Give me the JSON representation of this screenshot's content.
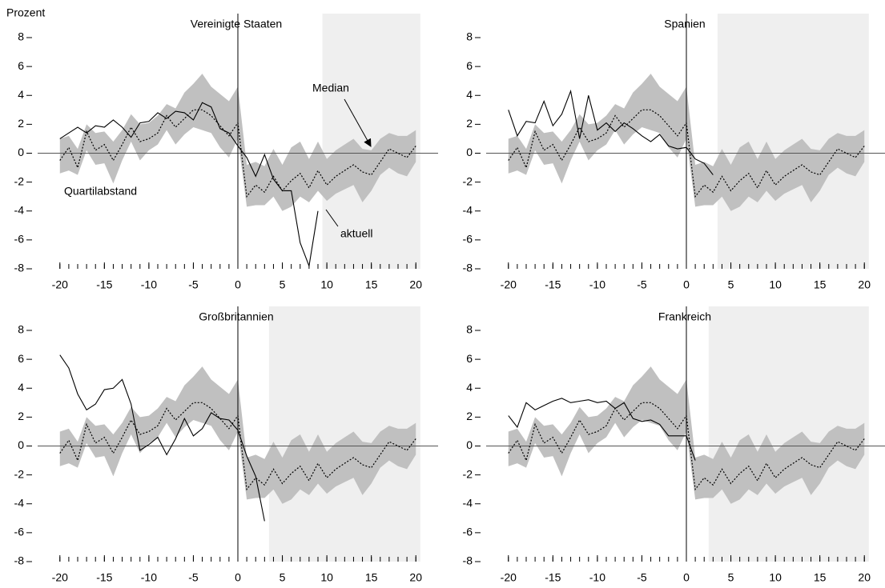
{
  "chart_data": [
    {
      "type": "line",
      "title": "Vereinigte Staaten",
      "ylabel": "Prozent",
      "x": [
        -20,
        -19,
        -18,
        -17,
        -16,
        -15,
        -14,
        -13,
        -12,
        -11,
        -10,
        -9,
        -8,
        -7,
        -6,
        -5,
        -4,
        -3,
        -2,
        -1,
        0,
        1,
        2,
        3,
        4,
        5,
        6,
        7,
        8,
        9,
        10,
        11,
        12,
        13,
        14,
        15,
        16,
        17,
        18,
        19,
        20
      ],
      "xlim": [
        -22.5,
        22.5
      ],
      "xticks": [
        -20,
        -15,
        -10,
        -5,
        0,
        5,
        10,
        15,
        20
      ],
      "ylim": [
        -8,
        8
      ],
      "yticks": [
        -8,
        -6,
        -4,
        -2,
        0,
        2,
        4,
        6,
        8
      ],
      "forecast_start": 9.5,
      "forecast_end": 20.5,
      "series": [
        {
          "name": "Quartilabstand",
          "color": "#c0c0c0",
          "high": [
            1.0,
            1.2,
            0.3,
            2.0,
            1.4,
            1.5,
            0.8,
            1.6,
            2.7,
            2.0,
            2.1,
            2.6,
            3.4,
            3.1,
            4.2,
            4.8,
            5.5,
            4.6,
            4.1,
            3.6,
            4.6,
            -0.8,
            -0.6,
            -0.9,
            0.3,
            -0.8,
            0.4,
            0.8,
            -0.4,
            0.8,
            -0.4,
            0.2,
            0.6,
            1.0,
            0.3,
            0.2,
            1.0,
            1.4,
            1.2,
            1.2,
            1.6
          ],
          "low": [
            -1.4,
            -1.2,
            -1.5,
            0.2,
            -0.8,
            -0.7,
            -2.1,
            -0.5,
            0.8,
            -0.5,
            0.2,
            0.6,
            1.6,
            0.6,
            1.3,
            1.8,
            1.6,
            1.4,
            0.4,
            -0.3,
            1.0,
            -3.7,
            -3.6,
            -3.6,
            -3.0,
            -4.0,
            -3.7,
            -3.0,
            -3.4,
            -2.6,
            -3.3,
            -2.8,
            -2.5,
            -2.2,
            -3.4,
            -2.6,
            -1.5,
            -1.0,
            -1.4,
            -1.6,
            -0.6
          ]
        },
        {
          "name": "Median",
          "color": "#000000",
          "values": [
            -0.5,
            0.4,
            -1.0,
            1.5,
            0.2,
            0.6,
            -0.5,
            0.6,
            1.8,
            0.8,
            1.0,
            1.4,
            2.6,
            1.8,
            2.4,
            3.0,
            3.0,
            2.6,
            1.9,
            1.2,
            2.1,
            -3.0,
            -2.2,
            -2.7,
            -1.6,
            -2.6,
            -1.9,
            -1.4,
            -2.4,
            -1.2,
            -2.2,
            -1.6,
            -1.2,
            -0.8,
            -1.3,
            -1.5,
            -0.6,
            0.3,
            0.0,
            -0.3,
            0.5
          ]
        },
        {
          "name": "aktuell",
          "color": "#000000",
          "values": [
            1.0,
            1.4,
            1.8,
            1.4,
            1.9,
            1.8,
            2.3,
            1.8,
            1.1,
            2.1,
            2.2,
            2.8,
            2.4,
            2.9,
            2.8,
            2.3,
            3.5,
            3.2,
            1.7,
            1.4,
            0.5,
            -0.3,
            -1.6,
            -0.1,
            -1.8,
            -2.6,
            -2.6,
            -6.2,
            -7.8,
            -4.0,
            null,
            null,
            null,
            null,
            null,
            null,
            null,
            null,
            null,
            null,
            null
          ]
        }
      ]
    },
    {
      "type": "line",
      "title": "Spanien",
      "x": [
        -20,
        -19,
        -18,
        -17,
        -16,
        -15,
        -14,
        -13,
        -12,
        -11,
        -10,
        -9,
        -8,
        -7,
        -6,
        -5,
        -4,
        -3,
        -2,
        -1,
        0,
        1,
        2,
        3,
        4,
        5,
        6,
        7,
        8,
        9,
        10,
        11,
        12,
        13,
        14,
        15,
        16,
        17,
        18,
        19,
        20
      ],
      "xlim": [
        -22.5,
        22.5
      ],
      "xticks": [
        -20,
        -15,
        -10,
        -5,
        0,
        5,
        10,
        15,
        20
      ],
      "ylim": [
        -8,
        8
      ],
      "yticks": [
        -8,
        -6,
        -4,
        -2,
        0,
        2,
        4,
        6,
        8
      ],
      "forecast_start": 3.5,
      "forecast_end": 20.5,
      "series": [
        {
          "color": "#c0c0c0",
          "high": [
            1.0,
            1.2,
            0.3,
            2.0,
            1.4,
            1.5,
            0.8,
            1.6,
            2.7,
            2.0,
            2.1,
            2.6,
            3.4,
            3.1,
            4.2,
            4.8,
            5.5,
            4.6,
            4.1,
            3.6,
            4.6,
            -0.8,
            -0.6,
            -0.9,
            0.3,
            -0.8,
            0.4,
            0.8,
            -0.4,
            0.8,
            -0.4,
            0.2,
            0.6,
            1.0,
            0.3,
            0.2,
            1.0,
            1.4,
            1.2,
            1.2,
            1.6
          ],
          "low": [
            -1.4,
            -1.2,
            -1.5,
            0.2,
            -0.8,
            -0.7,
            -2.1,
            -0.5,
            0.8,
            -0.5,
            0.2,
            0.6,
            1.6,
            0.6,
            1.3,
            1.8,
            1.6,
            1.4,
            0.4,
            -0.3,
            1.0,
            -3.7,
            -3.6,
            -3.6,
            -3.0,
            -4.0,
            -3.7,
            -3.0,
            -3.4,
            -2.6,
            -3.3,
            -2.8,
            -2.5,
            -2.2,
            -3.4,
            -2.6,
            -1.5,
            -1.0,
            -1.4,
            -1.6,
            -0.6
          ]
        },
        {
          "color": "#000000",
          "values": [
            -0.5,
            0.4,
            -1.0,
            1.5,
            0.2,
            0.6,
            -0.5,
            0.6,
            1.8,
            0.8,
            1.0,
            1.4,
            2.6,
            1.8,
            2.4,
            3.0,
            3.0,
            2.6,
            1.9,
            1.2,
            2.1,
            -3.0,
            -2.2,
            -2.7,
            -1.6,
            -2.6,
            -1.9,
            -1.4,
            -2.4,
            -1.2,
            -2.2,
            -1.6,
            -1.2,
            -0.8,
            -1.3,
            -1.5,
            -0.6,
            0.3,
            0.0,
            -0.3,
            0.5
          ]
        },
        {
          "color": "#000000",
          "values": [
            3.0,
            1.2,
            2.2,
            2.1,
            3.6,
            1.9,
            2.7,
            4.3,
            1.0,
            4.0,
            1.6,
            2.1,
            1.5,
            2.1,
            1.7,
            1.2,
            0.8,
            1.3,
            0.5,
            0.3,
            0.4,
            -0.4,
            -0.7,
            -1.5,
            null,
            null,
            null,
            null,
            null,
            null,
            null,
            null,
            null,
            null,
            null,
            null,
            null,
            null,
            null,
            null,
            null
          ]
        }
      ]
    },
    {
      "type": "line",
      "title": "Großbritannien",
      "x": [
        -20,
        -19,
        -18,
        -17,
        -16,
        -15,
        -14,
        -13,
        -12,
        -11,
        -10,
        -9,
        -8,
        -7,
        -6,
        -5,
        -4,
        -3,
        -2,
        -1,
        0,
        1,
        2,
        3,
        4,
        5,
        6,
        7,
        8,
        9,
        10,
        11,
        12,
        13,
        14,
        15,
        16,
        17,
        18,
        19,
        20
      ],
      "xlim": [
        -22.5,
        22.5
      ],
      "xticks": [
        -20,
        -15,
        -10,
        -5,
        0,
        5,
        10,
        15,
        20
      ],
      "ylim": [
        -8,
        8
      ],
      "yticks": [
        -8,
        -6,
        -4,
        -2,
        0,
        2,
        4,
        6,
        8
      ],
      "forecast_start": 3.5,
      "forecast_end": 20.5,
      "series": [
        {
          "color": "#c0c0c0",
          "high": [
            1.0,
            1.2,
            0.3,
            2.0,
            1.4,
            1.5,
            0.8,
            1.6,
            2.7,
            2.0,
            2.1,
            2.6,
            3.4,
            3.1,
            4.2,
            4.8,
            5.5,
            4.6,
            4.1,
            3.6,
            4.6,
            -0.8,
            -0.6,
            -0.9,
            0.3,
            -0.8,
            0.4,
            0.8,
            -0.4,
            0.8,
            -0.4,
            0.2,
            0.6,
            1.0,
            0.3,
            0.2,
            1.0,
            1.4,
            1.2,
            1.2,
            1.6
          ],
          "low": [
            -1.4,
            -1.2,
            -1.5,
            0.2,
            -0.8,
            -0.7,
            -2.1,
            -0.5,
            0.8,
            -0.5,
            0.2,
            0.6,
            1.6,
            0.6,
            1.3,
            1.8,
            1.6,
            1.4,
            0.4,
            -0.3,
            1.0,
            -3.7,
            -3.6,
            -3.6,
            -3.0,
            -4.0,
            -3.7,
            -3.0,
            -3.4,
            -2.6,
            -3.3,
            -2.8,
            -2.5,
            -2.2,
            -3.4,
            -2.6,
            -1.5,
            -1.0,
            -1.4,
            -1.6,
            -0.6
          ]
        },
        {
          "color": "#000000",
          "values": [
            -0.5,
            0.4,
            -1.0,
            1.5,
            0.2,
            0.6,
            -0.5,
            0.6,
            1.8,
            0.8,
            1.0,
            1.4,
            2.6,
            1.8,
            2.4,
            3.0,
            3.0,
            2.6,
            1.9,
            1.2,
            2.1,
            -3.0,
            -2.2,
            -2.7,
            -1.6,
            -2.6,
            -1.9,
            -1.4,
            -2.4,
            -1.2,
            -2.2,
            -1.6,
            -1.2,
            -0.8,
            -1.3,
            -1.5,
            -0.6,
            0.3,
            0.0,
            -0.3,
            0.5
          ]
        },
        {
          "color": "#000000",
          "values": [
            6.3,
            5.4,
            3.6,
            2.5,
            2.9,
            3.9,
            4.0,
            4.6,
            2.9,
            -0.3,
            0.1,
            0.6,
            -0.6,
            0.5,
            1.9,
            0.7,
            1.2,
            2.3,
            1.9,
            1.8,
            1.1,
            -0.7,
            -2.1,
            -5.2,
            null,
            null,
            null,
            null,
            null,
            null,
            null,
            null,
            null,
            null,
            null,
            null,
            null,
            null,
            null,
            null,
            null
          ]
        }
      ]
    },
    {
      "type": "line",
      "title": "Frankreich",
      "x": [
        -20,
        -19,
        -18,
        -17,
        -16,
        -15,
        -14,
        -13,
        -12,
        -11,
        -10,
        -9,
        -8,
        -7,
        -6,
        -5,
        -4,
        -3,
        -2,
        -1,
        0,
        1,
        2,
        3,
        4,
        5,
        6,
        7,
        8,
        9,
        10,
        11,
        12,
        13,
        14,
        15,
        16,
        17,
        18,
        19,
        20
      ],
      "xlim": [
        -22.5,
        22.5
      ],
      "xticks": [
        -20,
        -15,
        -10,
        -5,
        0,
        5,
        10,
        15,
        20
      ],
      "ylim": [
        -8,
        8
      ],
      "yticks": [
        -8,
        -6,
        -4,
        -2,
        0,
        2,
        4,
        6,
        8
      ],
      "forecast_start": 2.5,
      "forecast_end": 20.5,
      "series": [
        {
          "color": "#c0c0c0",
          "high": [
            1.0,
            1.2,
            0.3,
            2.0,
            1.4,
            1.5,
            0.8,
            1.6,
            2.7,
            2.0,
            2.1,
            2.6,
            3.4,
            3.1,
            4.2,
            4.8,
            5.5,
            4.6,
            4.1,
            3.6,
            4.6,
            -0.8,
            -0.6,
            -0.9,
            0.3,
            -0.8,
            0.4,
            0.8,
            -0.4,
            0.8,
            -0.4,
            0.2,
            0.6,
            1.0,
            0.3,
            0.2,
            1.0,
            1.4,
            1.2,
            1.2,
            1.6
          ],
          "low": [
            -1.4,
            -1.2,
            -1.5,
            0.2,
            -0.8,
            -0.7,
            -2.1,
            -0.5,
            0.8,
            -0.5,
            0.2,
            0.6,
            1.6,
            0.6,
            1.3,
            1.8,
            1.6,
            1.4,
            0.4,
            -0.3,
            1.0,
            -3.7,
            -3.6,
            -3.6,
            -3.0,
            -4.0,
            -3.7,
            -3.0,
            -3.4,
            -2.6,
            -3.3,
            -2.8,
            -2.5,
            -2.2,
            -3.4,
            -2.6,
            -1.5,
            -1.0,
            -1.4,
            -1.6,
            -0.6
          ]
        },
        {
          "color": "#000000",
          "values": [
            -0.5,
            0.4,
            -1.0,
            1.5,
            0.2,
            0.6,
            -0.5,
            0.6,
            1.8,
            0.8,
            1.0,
            1.4,
            2.6,
            1.8,
            2.4,
            3.0,
            3.0,
            2.6,
            1.9,
            1.2,
            2.1,
            -3.0,
            -2.2,
            -2.7,
            -1.6,
            -2.6,
            -1.9,
            -1.4,
            -2.4,
            -1.2,
            -2.2,
            -1.6,
            -1.2,
            -0.8,
            -1.3,
            -1.5,
            -0.6,
            0.3,
            0.0,
            -0.3,
            0.5
          ]
        },
        {
          "color": "#000000",
          "values": [
            2.1,
            1.3,
            3.0,
            2.5,
            2.8,
            3.1,
            3.3,
            3.0,
            3.1,
            3.2,
            3.0,
            3.1,
            2.6,
            3.0,
            1.9,
            1.7,
            1.8,
            1.5,
            0.7,
            0.7,
            0.7,
            -1.0,
            null,
            null,
            null,
            null,
            null,
            null,
            null,
            null,
            null,
            null,
            null,
            null,
            null,
            null,
            null,
            null,
            null,
            null,
            null
          ]
        }
      ]
    }
  ]
}
